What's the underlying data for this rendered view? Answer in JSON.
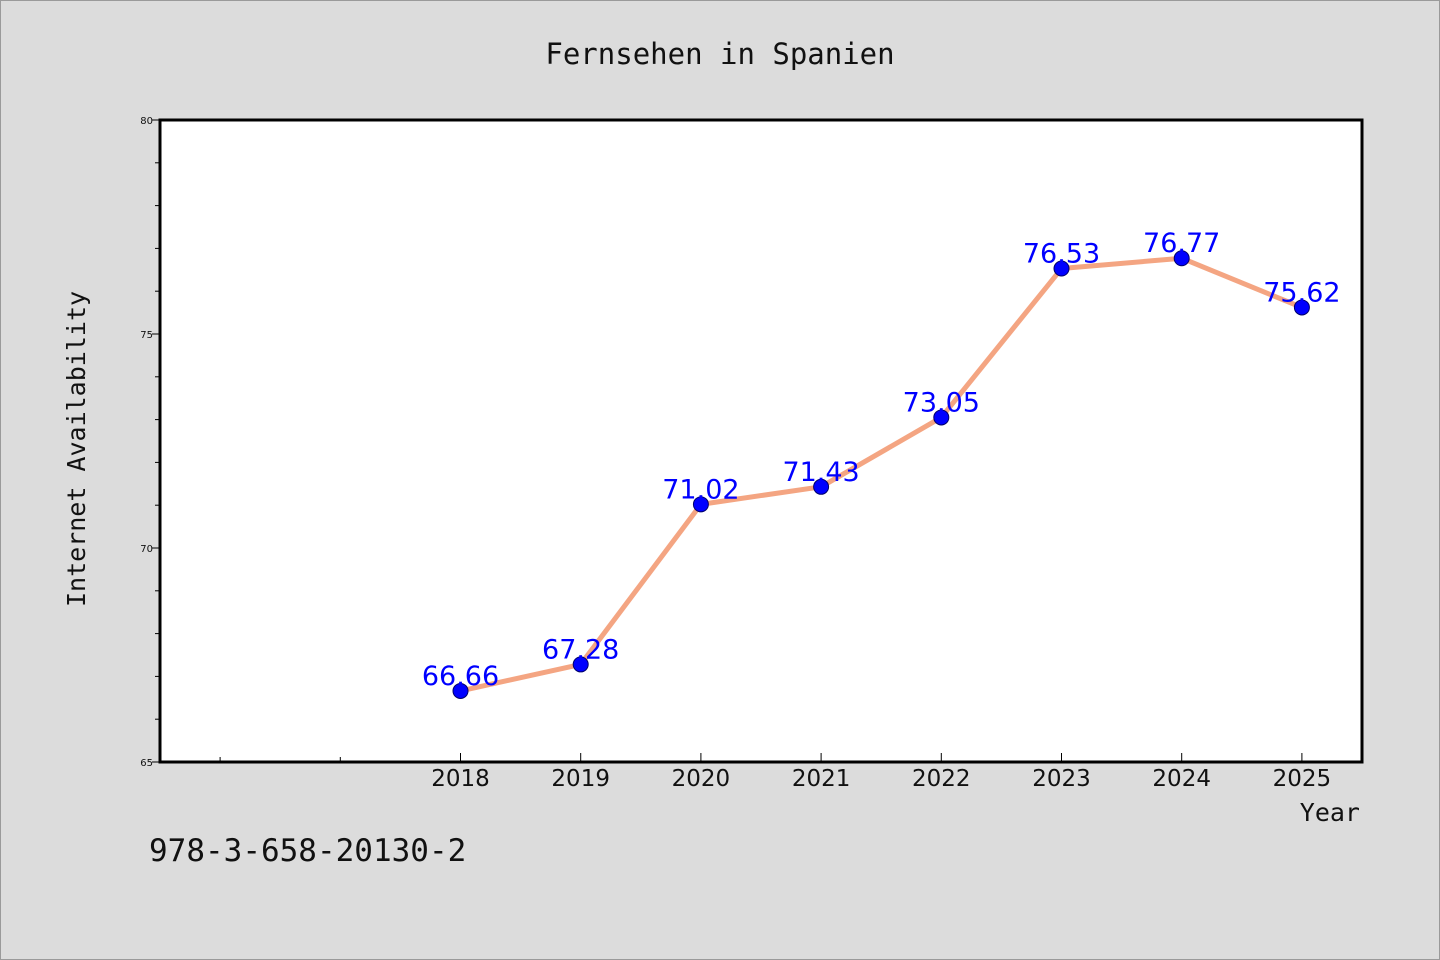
{
  "chart_data": {
    "type": "line",
    "title": "Fernsehen in Spanien",
    "xlabel": "Year",
    "ylabel": "Internet Availability",
    "categories": [
      "2018",
      "2019",
      "2020",
      "2021",
      "2022",
      "2023",
      "2024",
      "2025"
    ],
    "series": [
      {
        "values": [
          66.66,
          67.28,
          71.02,
          71.43,
          73.05,
          76.53,
          76.77,
          75.62
        ],
        "data_labels": [
          "66.66",
          "67.28",
          "71.02",
          "71.43",
          "73.05",
          "76.53",
          "76.77",
          "75.62"
        ]
      }
    ],
    "x_range": [
      2015.5,
      2025.5
    ],
    "ylim": [
      65,
      80
    ],
    "yticks": [
      65,
      70,
      75,
      80
    ],
    "ytick_labels": [
      "65",
      "70",
      "75",
      "80"
    ],
    "yminor_step": 1,
    "xminor_ticks": [
      2016,
      2017
    ],
    "grid": false,
    "legend": "none",
    "colors": {
      "line": "#f4a582",
      "marker": "#0000ff",
      "data_label": "#0000ff",
      "plot_background": "#ffffff",
      "figure_background": "#dcdcdc"
    }
  },
  "footer": {
    "code": "978-3-658-20130-2"
  }
}
